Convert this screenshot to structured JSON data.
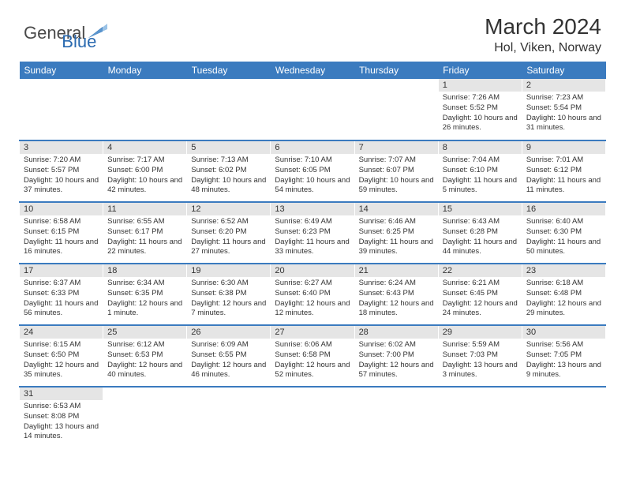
{
  "logo": {
    "text1": "General",
    "text2": "Blue"
  },
  "title": "March 2024",
  "location": "Hol, Viken, Norway",
  "header_bg": "#3b7bbf",
  "header_fg": "#ffffff",
  "daynum_bg": "#e5e5e5",
  "border_color": "#3b7bbf",
  "days_of_week": [
    "Sunday",
    "Monday",
    "Tuesday",
    "Wednesday",
    "Thursday",
    "Friday",
    "Saturday"
  ],
  "weeks": [
    [
      null,
      null,
      null,
      null,
      null,
      {
        "n": "1",
        "sr": "7:26 AM",
        "ss": "5:52 PM",
        "dl": "10 hours and 26 minutes."
      },
      {
        "n": "2",
        "sr": "7:23 AM",
        "ss": "5:54 PM",
        "dl": "10 hours and 31 minutes."
      }
    ],
    [
      {
        "n": "3",
        "sr": "7:20 AM",
        "ss": "5:57 PM",
        "dl": "10 hours and 37 minutes."
      },
      {
        "n": "4",
        "sr": "7:17 AM",
        "ss": "6:00 PM",
        "dl": "10 hours and 42 minutes."
      },
      {
        "n": "5",
        "sr": "7:13 AM",
        "ss": "6:02 PM",
        "dl": "10 hours and 48 minutes."
      },
      {
        "n": "6",
        "sr": "7:10 AM",
        "ss": "6:05 PM",
        "dl": "10 hours and 54 minutes."
      },
      {
        "n": "7",
        "sr": "7:07 AM",
        "ss": "6:07 PM",
        "dl": "10 hours and 59 minutes."
      },
      {
        "n": "8",
        "sr": "7:04 AM",
        "ss": "6:10 PM",
        "dl": "11 hours and 5 minutes."
      },
      {
        "n": "9",
        "sr": "7:01 AM",
        "ss": "6:12 PM",
        "dl": "11 hours and 11 minutes."
      }
    ],
    [
      {
        "n": "10",
        "sr": "6:58 AM",
        "ss": "6:15 PM",
        "dl": "11 hours and 16 minutes."
      },
      {
        "n": "11",
        "sr": "6:55 AM",
        "ss": "6:17 PM",
        "dl": "11 hours and 22 minutes."
      },
      {
        "n": "12",
        "sr": "6:52 AM",
        "ss": "6:20 PM",
        "dl": "11 hours and 27 minutes."
      },
      {
        "n": "13",
        "sr": "6:49 AM",
        "ss": "6:23 PM",
        "dl": "11 hours and 33 minutes."
      },
      {
        "n": "14",
        "sr": "6:46 AM",
        "ss": "6:25 PM",
        "dl": "11 hours and 39 minutes."
      },
      {
        "n": "15",
        "sr": "6:43 AM",
        "ss": "6:28 PM",
        "dl": "11 hours and 44 minutes."
      },
      {
        "n": "16",
        "sr": "6:40 AM",
        "ss": "6:30 PM",
        "dl": "11 hours and 50 minutes."
      }
    ],
    [
      {
        "n": "17",
        "sr": "6:37 AM",
        "ss": "6:33 PM",
        "dl": "11 hours and 56 minutes."
      },
      {
        "n": "18",
        "sr": "6:34 AM",
        "ss": "6:35 PM",
        "dl": "12 hours and 1 minute."
      },
      {
        "n": "19",
        "sr": "6:30 AM",
        "ss": "6:38 PM",
        "dl": "12 hours and 7 minutes."
      },
      {
        "n": "20",
        "sr": "6:27 AM",
        "ss": "6:40 PM",
        "dl": "12 hours and 12 minutes."
      },
      {
        "n": "21",
        "sr": "6:24 AM",
        "ss": "6:43 PM",
        "dl": "12 hours and 18 minutes."
      },
      {
        "n": "22",
        "sr": "6:21 AM",
        "ss": "6:45 PM",
        "dl": "12 hours and 24 minutes."
      },
      {
        "n": "23",
        "sr": "6:18 AM",
        "ss": "6:48 PM",
        "dl": "12 hours and 29 minutes."
      }
    ],
    [
      {
        "n": "24",
        "sr": "6:15 AM",
        "ss": "6:50 PM",
        "dl": "12 hours and 35 minutes."
      },
      {
        "n": "25",
        "sr": "6:12 AM",
        "ss": "6:53 PM",
        "dl": "12 hours and 40 minutes."
      },
      {
        "n": "26",
        "sr": "6:09 AM",
        "ss": "6:55 PM",
        "dl": "12 hours and 46 minutes."
      },
      {
        "n": "27",
        "sr": "6:06 AM",
        "ss": "6:58 PM",
        "dl": "12 hours and 52 minutes."
      },
      {
        "n": "28",
        "sr": "6:02 AM",
        "ss": "7:00 PM",
        "dl": "12 hours and 57 minutes."
      },
      {
        "n": "29",
        "sr": "5:59 AM",
        "ss": "7:03 PM",
        "dl": "13 hours and 3 minutes."
      },
      {
        "n": "30",
        "sr": "5:56 AM",
        "ss": "7:05 PM",
        "dl": "13 hours and 9 minutes."
      }
    ],
    [
      {
        "n": "31",
        "sr": "6:53 AM",
        "ss": "8:08 PM",
        "dl": "13 hours and 14 minutes."
      },
      null,
      null,
      null,
      null,
      null,
      null
    ]
  ],
  "labels": {
    "sunrise": "Sunrise: ",
    "sunset": "Sunset: ",
    "daylight": "Daylight: "
  }
}
